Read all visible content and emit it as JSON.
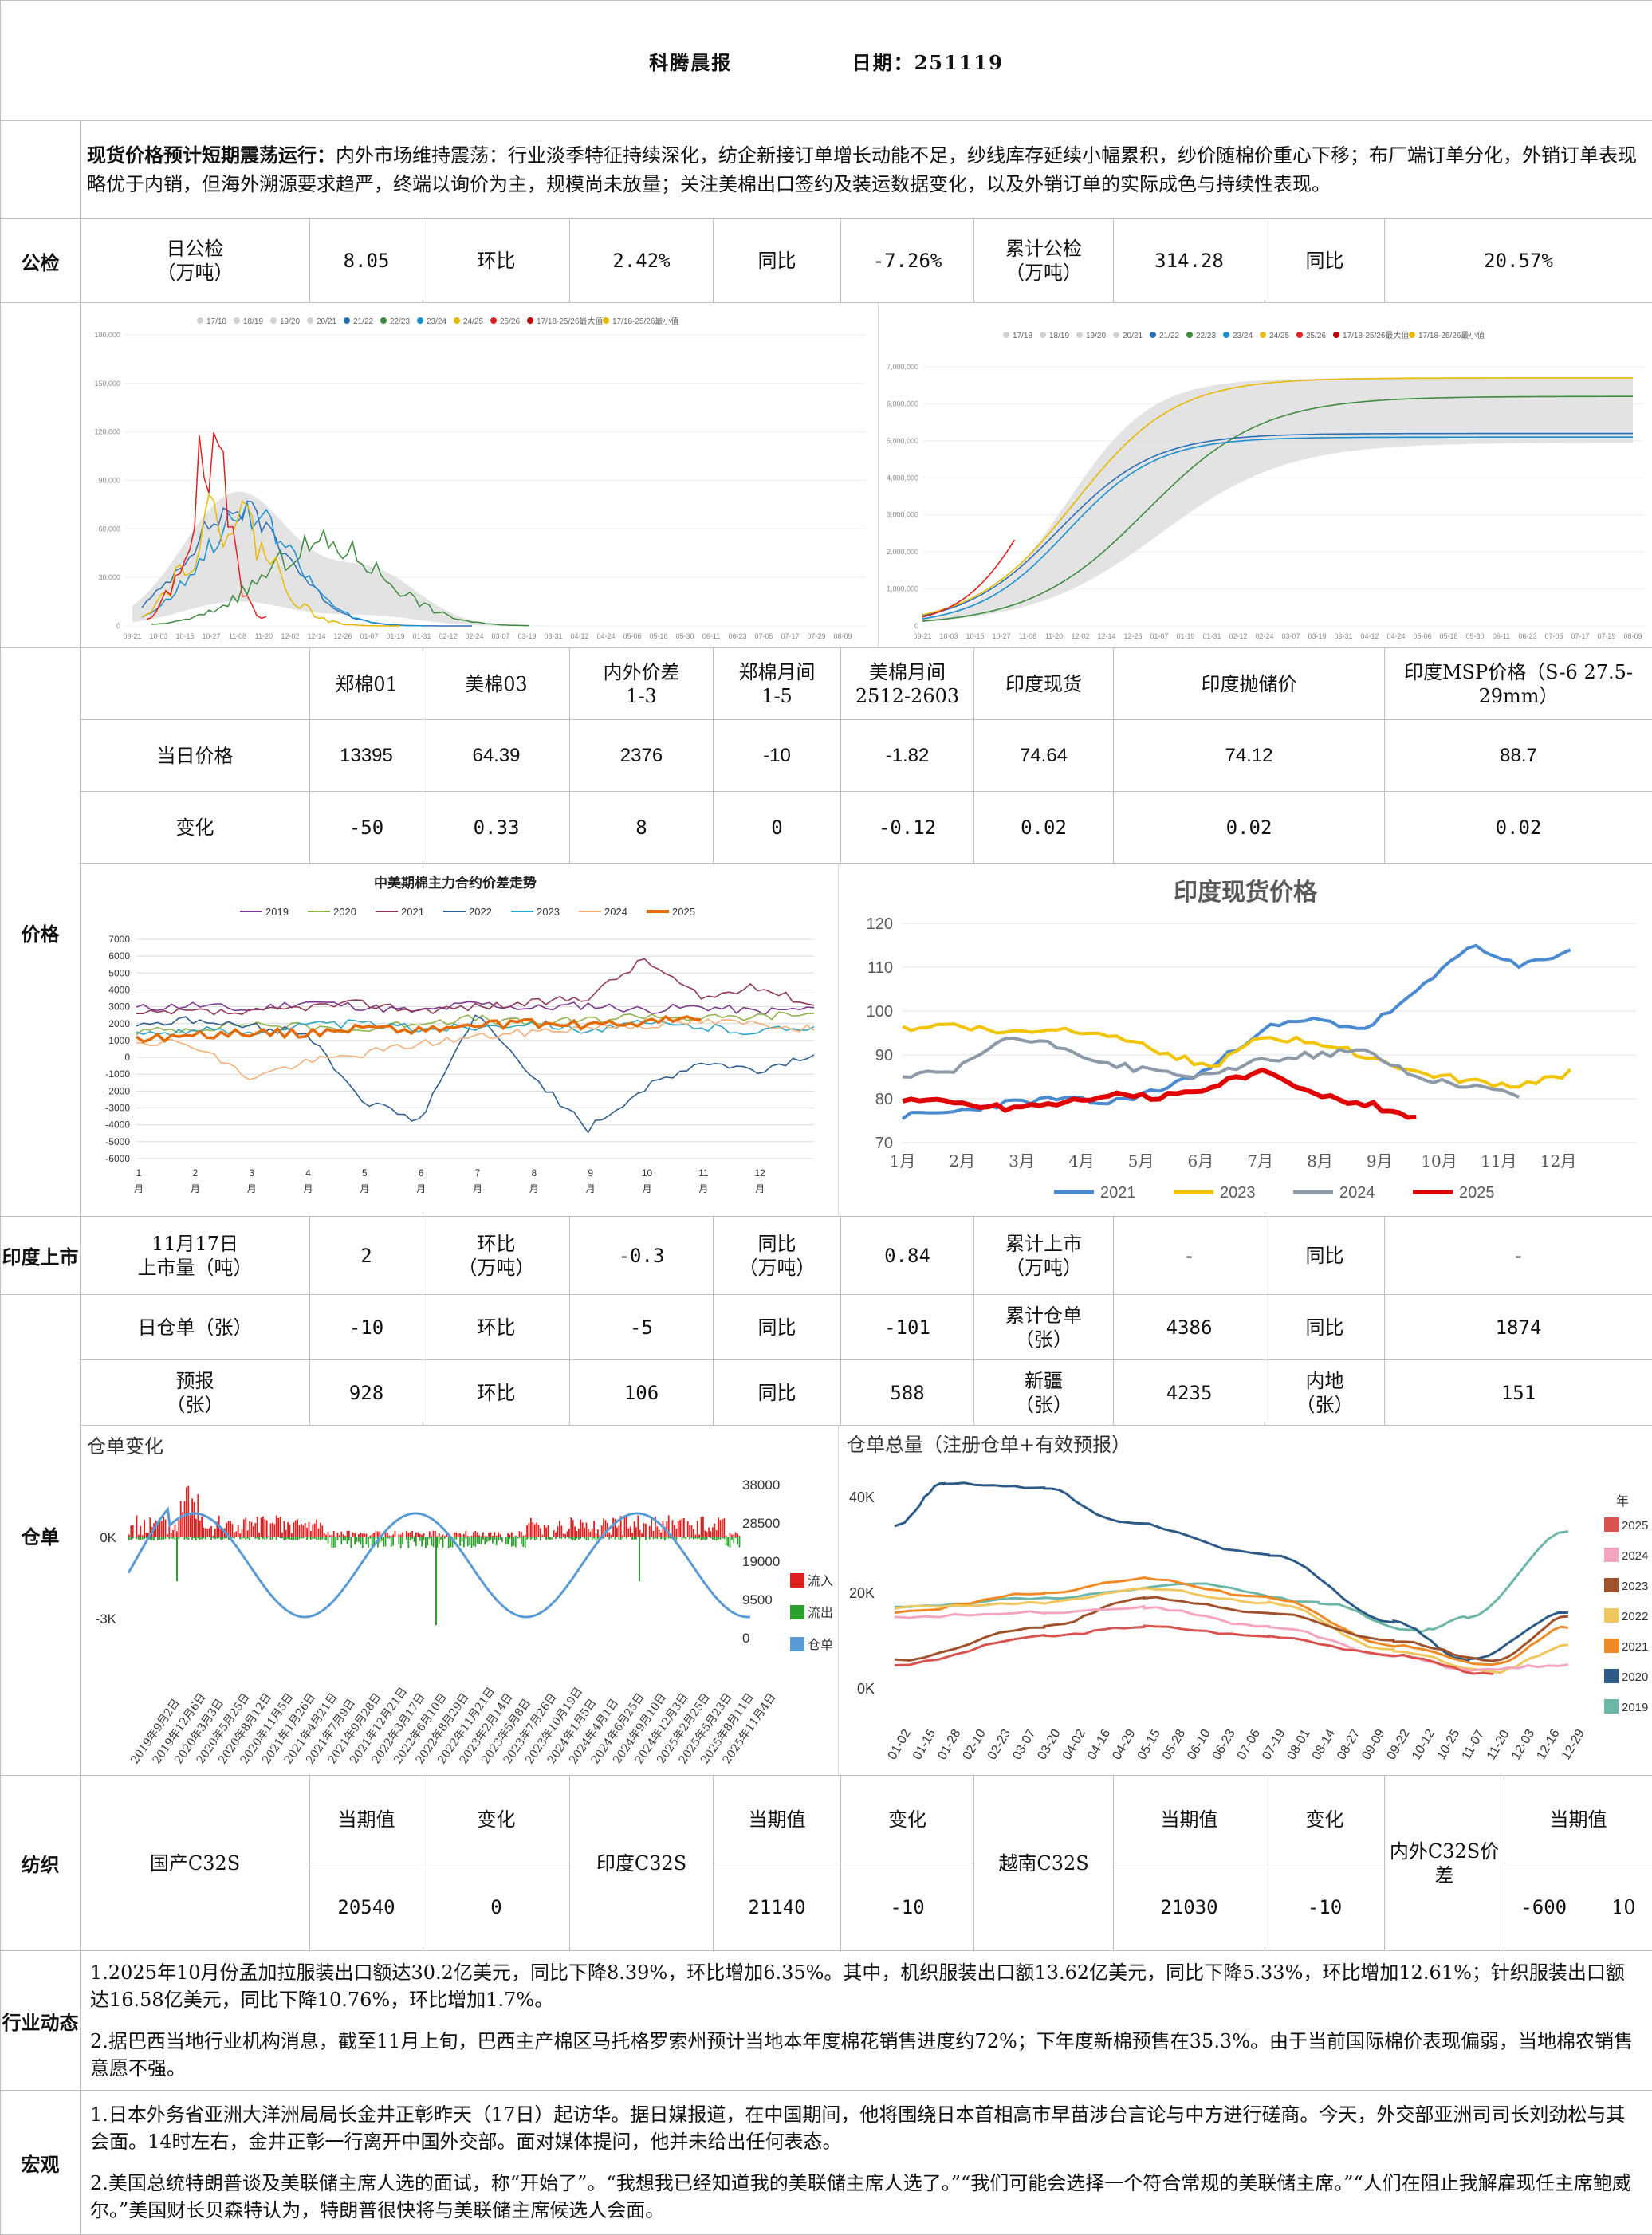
{
  "header": {
    "title": "科腾晨报",
    "date_label": "日期：251119"
  },
  "summary": {
    "lead": "现货价格预计短期震荡运行：",
    "body": "内外市场维持震荡：行业淡季特征持续深化，纺企新接订单增长动能不足，纱线库存延续小幅累积，纱价随棉价重心下移；布厂端订单分化，外销订单表现略优于内销，但海外溯源要求趋严，终端以询价为主，规模尚未放量；关注美棉出口签约及装运数据变化，以及外销订单的实际成色与持续性表现。"
  },
  "inspection": {
    "section": "公检",
    "daily_label": "日公检\n（万吨）",
    "daily_value": "8.05",
    "mom_label": "环比",
    "mom_value": "2.42%",
    "yoy_label": "同比",
    "yoy_value": "-7.26%",
    "cum_label": "累计公检\n（万吨）",
    "cum_value": "314.28",
    "cum_yoy_label": "同比",
    "cum_yoy_value": "20.57%"
  },
  "inspection_charts": {
    "legend": [
      "17/18",
      "18/19",
      "19/20",
      "20/21",
      "21/22",
      "22/23",
      "23/24",
      "24/25",
      "25/26",
      "17/18-25/26最大值",
      "17/18-25/26最小值"
    ],
    "legend_colors": [
      "#d0d0d0",
      "#d0d0d0",
      "#d0d0d0",
      "#d0d0d0",
      "#2c6fb7",
      "#3d8a3d",
      "#1a8fd0",
      "#e6b800",
      "#e02020",
      "#c00000",
      "#e6b800"
    ],
    "left_y_ticks": [
      "180,000",
      "150,000",
      "120,000",
      "90,000",
      "60,000",
      "30,000",
      "0"
    ],
    "left_x_ticks": [
      "09-21",
      "10-03",
      "10-15",
      "10-27",
      "11-08",
      "11-20",
      "12-02",
      "12-14",
      "12-26",
      "01-07",
      "01-19",
      "01-31",
      "02-12",
      "02-24",
      "03-07",
      "03-19",
      "03-31",
      "04-12",
      "04-24",
      "05-06",
      "05-18",
      "05-30",
      "06-11",
      "06-23",
      "07-05",
      "07-17",
      "07-29",
      "08-09"
    ],
    "right_y_ticks": [
      "7,000,000",
      "6,000,000",
      "5,000,000",
      "4,000,000",
      "3,000,000",
      "2,000,000",
      "1,000,000",
      "0"
    ],
    "right_x_ticks": [
      "09-21",
      "10-03",
      "10-15",
      "10-27",
      "11-08",
      "11-20",
      "12-02",
      "12-14",
      "12-26",
      "01-07",
      "01-19",
      "01-31",
      "02-12",
      "02-24",
      "03-07",
      "03-19",
      "03-31",
      "04-12",
      "04-24",
      "05-06",
      "05-18",
      "05-30",
      "06-11",
      "06-23",
      "07-05",
      "07-17",
      "07-29",
      "08-09"
    ]
  },
  "prices": {
    "section": "价格",
    "headers": [
      "郑棉01",
      "美棉03",
      "内外价差\n1-3",
      "郑棉月间\n1-5",
      "美棉月间\n2512-2603",
      "印度现货",
      "印度抛储价",
      "印度MSP价格（S-6 27.5-29mm）"
    ],
    "row1_label": "当日价格",
    "row1": [
      "13395",
      "64.39",
      "2376",
      "-10",
      "-1.82",
      "74.64",
      "74.12",
      "88.7"
    ],
    "row2_label": "变化",
    "row2": [
      "-50",
      "0.33",
      "8",
      "0",
      "-0.12",
      "0.02",
      "0.02",
      "0.02"
    ]
  },
  "spread_chart": {
    "title": "中美期棉主力合约价差走势",
    "series": [
      {
        "name": "2019",
        "color": "#7b3a8c",
        "values": [
          2900,
          3100,
          2800,
          3300,
          3000,
          2700,
          3200,
          2900,
          3100,
          2800,
          3000,
          2700,
          2900
        ]
      },
      {
        "name": "2020",
        "color": "#8fb24c",
        "values": [
          1500,
          1700,
          2000,
          1800,
          1600,
          2100,
          2300,
          2000,
          2200,
          2500,
          2300,
          2400,
          2600
        ]
      },
      {
        "name": "2021",
        "color": "#8e3a57",
        "values": [
          2500,
          2700,
          2600,
          3000,
          3200,
          2800,
          3000,
          3200,
          3600,
          5800,
          3500,
          4200,
          3100
        ]
      },
      {
        "name": "2022",
        "color": "#2f5e8e",
        "values": [
          2000,
          2200,
          1800,
          1500,
          -2500,
          -3800,
          2500,
          -1000,
          -4300,
          -1800,
          -300,
          -800,
          200
        ]
      },
      {
        "name": "2023",
        "color": "#2ea6c3",
        "values": [
          1400,
          1600,
          1500,
          1900,
          2000,
          1700,
          1800,
          2100,
          1600,
          2000,
          1800,
          1500,
          1900
        ]
      },
      {
        "name": "2024",
        "color": "#f2b07b",
        "values": [
          1000,
          800,
          -1200,
          -300,
          200,
          800,
          1200,
          1500,
          1800,
          1900,
          2100,
          2000,
          1700
        ]
      },
      {
        "name": "2025",
        "color": "#e36c09",
        "values": [
          1100,
          1300,
          1500,
          1400,
          1800,
          1600,
          1900,
          2000,
          1900,
          2100,
          2300
        ]
      }
    ],
    "y_ticks": [
      "7000",
      "6000",
      "5000",
      "4000",
      "3000",
      "2000",
      "1000",
      "0",
      "-1000",
      "-2000",
      "-3000",
      "-4000",
      "-5000",
      "-6000"
    ],
    "x_ticks": [
      "1\n月",
      "2\n月",
      "3\n月",
      "4\n月",
      "5\n月",
      "6\n月",
      "7\n月",
      "8\n月",
      "9\n月",
      "10\n月",
      "11\n月",
      "12\n月"
    ]
  },
  "india_chart": {
    "title": "印度现货价格",
    "y_ticks": [
      "120",
      "110",
      "100",
      "90",
      "80",
      "70"
    ],
    "x_ticks": [
      "1月",
      "2月",
      "3月",
      "4月",
      "5月",
      "6月",
      "7月",
      "8月",
      "9月",
      "10月",
      "11月",
      "12月"
    ],
    "series": [
      {
        "name": "2021",
        "color": "#4a8ad0",
        "values": [
          76,
          77,
          79,
          80,
          79,
          82,
          87,
          96,
          98,
          96,
          104,
          115,
          110,
          114
        ]
      },
      {
        "name": "2023",
        "color": "#f2c400",
        "values": [
          96,
          97,
          95,
          96,
          95,
          91,
          87,
          94,
          93,
          90,
          86,
          84,
          83,
          86
        ]
      },
      {
        "name": "2024",
        "color": "#8c99a8",
        "values": [
          85,
          86,
          94,
          92,
          88,
          86,
          85,
          89,
          90,
          91,
          85,
          83,
          81
        ]
      },
      {
        "name": "2025",
        "color": "#e00000",
        "values": [
          80,
          79,
          78,
          79,
          81,
          80,
          83,
          86,
          81,
          79,
          76
        ]
      }
    ]
  },
  "india_market": {
    "section": "印度上市",
    "date_label": "11月17日\n上市量（吨）",
    "value": "2",
    "mom_label": "环比\n（万吨）",
    "mom_value": "-0.3",
    "yoy_label": "同比\n（万吨）",
    "yoy_value": "0.84",
    "cum_label": "累计上市\n（万吨）",
    "cum_value": "-",
    "cum_yoy_label": "同比",
    "cum_yoy_value": "-"
  },
  "warehouse": {
    "section": "仓单",
    "daily_label": "日仓单（张）",
    "daily_value": "-10",
    "mom_label": "环比",
    "mom_value": "-5",
    "yoy_label": "同比",
    "yoy_value": "-101",
    "cum_label": "累计仓单\n（张）",
    "cum_value": "4386",
    "cum_yoy_label": "同比",
    "cum_yoy_value": "1874",
    "forecast_label": "预报\n（张）",
    "forecast_value": "928",
    "f_mom_label": "环比",
    "f_mom_value": "106",
    "f_yoy_label": "同比",
    "f_yoy_value": "588",
    "xj_label": "新疆\n（张）",
    "xj_value": "4235",
    "nd_label": "内地\n（张）",
    "nd_value": "151"
  },
  "warrant_change_chart": {
    "title": "仓单变化",
    "left_ticks": [
      "0K",
      "-3K"
    ],
    "right_ticks": [
      "38000",
      "28500",
      "19000",
      "9500",
      "0"
    ],
    "legend": [
      "流入",
      "流出",
      "仓单"
    ],
    "legend_colors": [
      "#e02020",
      "#2ca02c",
      "#5b9bd5"
    ],
    "x_ticks": [
      "2019年9月2日",
      "2019年12月6日",
      "2020年3月3日",
      "2020年5月25日",
      "2020年8月12日",
      "2020年11月5日",
      "2021年1月26日",
      "2021年4月21日",
      "2021年7月9日",
      "2021年9月28日",
      "2021年12月21日",
      "2022年3月17日",
      "2022年6月10日",
      "2022年8月29日",
      "2022年11月21日",
      "2023年2月14日",
      "2023年5月8日",
      "2023年7月26日",
      "2023年10月19日",
      "2024年1月5日",
      "2024年4月1日",
      "2024年6月25日",
      "2024年9月10日",
      "2024年12月3日",
      "2025年2月25日",
      "2025年5月23日",
      "2025年8月11日",
      "2025年11月4日"
    ]
  },
  "warrant_total_chart": {
    "title": "仓单总量（注册仓单+有效预报）",
    "y_ticks": [
      "40K",
      "20K",
      "0K"
    ],
    "legend_title": "年",
    "legend": [
      "2025",
      "2024",
      "2023",
      "2022",
      "2021",
      "2020",
      "2019"
    ],
    "legend_colors": [
      "#d9534f",
      "#f4a6c0",
      "#a0522d",
      "#f0c75e",
      "#f08a24",
      "#2e5a88",
      "#6cb7a8"
    ],
    "x_ticks": [
      "01-02",
      "01-15",
      "01-28",
      "02-10",
      "02-23",
      "03-07",
      "03-20",
      "04-02",
      "04-16",
      "04-29",
      "05-15",
      "05-28",
      "06-10",
      "06-23",
      "07-06",
      "07-19",
      "08-01",
      "08-14",
      "08-27",
      "09-09",
      "09-22",
      "10-12",
      "10-25",
      "11-07",
      "11-20",
      "12-03",
      "12-16",
      "12-29"
    ]
  },
  "textile": {
    "section": "纺织",
    "domestic_label": "国产C32S",
    "domestic_cur_label": "当期值",
    "domestic_chg_label": "变化",
    "domestic_cur": "20540",
    "domestic_chg": "0",
    "india_label": "印度C32S",
    "india_cur_label": "当期值",
    "india_chg_label": "变化",
    "india_cur": "21140",
    "india_chg": "-10",
    "vietnam_label": "越南C32S",
    "vietnam_cur_label": "当期值",
    "vietnam_chg_label": "变化",
    "vietnam_cur": "21030",
    "vietnam_chg": "-10",
    "spread_label": "内外C32S价差",
    "spread_cur_label": "当期值",
    "spread_chg_label": "变化",
    "spread_cur": "-600",
    "spread_chg": "10"
  },
  "industry": {
    "section": "行业动态",
    "items": [
      "1.2025年10月份孟加拉服装出口额达30.2亿美元，同比下降8.39%，环比增加6.35%。其中，机织服装出口额13.62亿美元，同比下降5.33%，环比增加12.61%；针织服装出口额达16.58亿美元，同比下降10.76%，环比增加1.7%。",
      "2.据巴西当地行业机构消息，截至11月上旬，巴西主产棉区马托格罗索州预计当地本年度棉花销售进度约72%；下年度新棉预售在35.3%。由于当前国际棉价表现偏弱，当地棉农销售意愿不强。"
    ]
  },
  "macro": {
    "section": "宏观",
    "items": [
      "1.日本外务省亚洲大洋洲局局长金井正彰昨天（17日）起访华。据日媒报道，在中国期间，他将围绕日本首相高市早苗涉台言论与中方进行磋商。今天，外交部亚洲司司长刘劲松与其会面。14时左右，金井正彰一行离开中国外交部。面对媒体提问，他并未给出任何表态。",
      "2.美国总统特朗普谈及美联储主席人选的面试，称“开始了”。“我想我已经知道我的美联储主席人选了。”“我们可能会选择一个符合常规的美联储主席。”“人们在阻止我解雇现任主席鲍威尔。”美国财长贝森特认为，特朗普很快将与美联储主席候选人会面。"
    ]
  }
}
